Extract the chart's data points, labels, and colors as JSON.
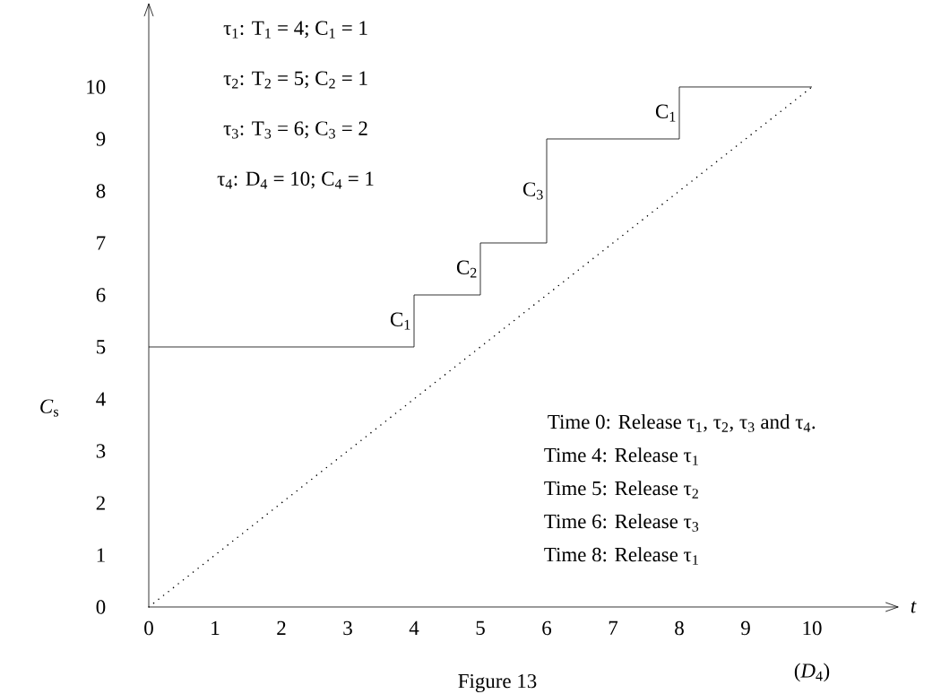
{
  "chart_data": {
    "type": "step",
    "xlabel": "t",
    "ylabel": "*C*$_{s}$",
    "xlim": [
      0,
      11.3
    ],
    "ylim": [
      0,
      11.6
    ],
    "xticks": [
      0,
      1,
      2,
      3,
      4,
      5,
      6,
      7,
      8,
      9,
      10
    ],
    "yticks": [
      0,
      1,
      2,
      3,
      4,
      5,
      6,
      7,
      8,
      9,
      10
    ],
    "grid": false,
    "marker": "none",
    "series": [
      {
        "type": "step",
        "color": "#000000",
        "line_style": "solid",
        "x": [
          0,
          4,
          5,
          6,
          8,
          10
        ],
        "values": [
          5,
          6,
          7,
          9,
          10,
          10
        ]
      },
      {
        "type": "line",
        "color": "#000000",
        "line_style": "dotted",
        "x": [
          0,
          10
        ],
        "values": [
          0,
          10
        ]
      }
    ],
    "annotations": [
      "τ$_{1}$: T$_{1}$ = 4; C$_{1}$ = 1",
      "τ$_{2}$: T$_{2}$ = 5; C$_{2}$ = 1",
      "τ$_{3}$: T$_{3}$ = 6; C$_{3}$ = 2",
      "τ$_{4}$: D$_{4}$ = 10; C$_{4}$ = 1",
      "Time 0: Release τ$_{1}$, τ$_{2}$, τ$_{3}$ and τ$_{4}$.",
      "Time 4: Release τ$_{1}$",
      "Time 5: Release τ$_{2}$",
      "Time 6: Release τ$_{3}$",
      "Time 8: Release τ$_{1}$",
      {
        "text": "C$_{1}$",
        "x": 4,
        "y": 5.5
      },
      {
        "text": "C$_{2}$",
        "x": 5,
        "y": 6.5
      },
      {
        "text": "C$_{3}$",
        "x": 6,
        "y": 8
      },
      {
        "text": "C$_{1}$",
        "x": 8,
        "y": 9.5
      },
      "(*D*$_{4}$)",
      "Figure 13"
    ]
  }
}
